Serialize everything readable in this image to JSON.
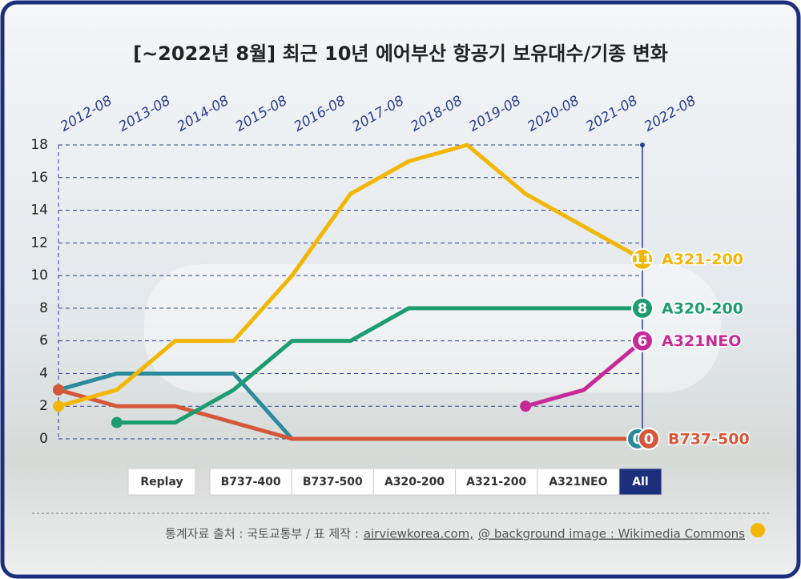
{
  "chart_data": {
    "type": "line",
    "title": "[~2022년 8월] 최근 10년 에어부산 항공기 보유대수/기종 변화",
    "categories": [
      "2012-08",
      "2013-08",
      "2014-08",
      "2015-08",
      "2016-08",
      "2017-08",
      "2018-08",
      "2019-08",
      "2020-08",
      "2021-08",
      "2022-08"
    ],
    "series": [
      {
        "name": "B737-400",
        "color": "#2b8a9c",
        "values": [
          3,
          4,
          4,
          4,
          0,
          0,
          0,
          0,
          0,
          0,
          0
        ]
      },
      {
        "name": "B737-500",
        "color": "#d4573a",
        "values": [
          3,
          2,
          2,
          1,
          0,
          0,
          0,
          0,
          0,
          0,
          0
        ]
      },
      {
        "name": "A320-200",
        "color": "#1d9c70",
        "values": [
          null,
          1,
          1,
          3,
          6,
          6,
          8,
          8,
          8,
          8,
          8
        ]
      },
      {
        "name": "A321-200",
        "color": "#f2b705",
        "values": [
          2,
          3,
          6,
          6,
          10,
          15,
          17,
          18,
          15,
          13,
          11
        ]
      },
      {
        "name": "A321NEO",
        "color": "#c62a98",
        "values": [
          null,
          null,
          null,
          null,
          null,
          null,
          null,
          null,
          2,
          3,
          6
        ]
      }
    ],
    "ylim": [
      0,
      18
    ],
    "yticks": [
      0,
      2,
      4,
      6,
      8,
      10,
      12,
      14,
      16,
      18
    ],
    "grid": true
  },
  "controls": {
    "replay": "Replay",
    "all": "All"
  },
  "footer": {
    "source": "통계자료 출처 : 국토교통부 / 표 제작 :",
    "links": [
      "airviewkorea.com,",
      "@ background image : Wikimedia Commons"
    ]
  }
}
